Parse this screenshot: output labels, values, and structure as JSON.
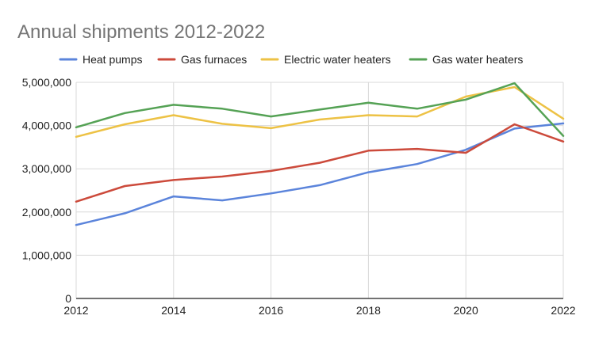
{
  "chart_data": {
    "type": "line",
    "title": "Annual shipments 2012-2022",
    "xlabel": "",
    "ylabel": "",
    "x": [
      2012,
      2013,
      2014,
      2015,
      2016,
      2017,
      2018,
      2019,
      2020,
      2021,
      2022
    ],
    "x_ticks": [
      "2012",
      "2014",
      "2016",
      "2018",
      "2020",
      "2022"
    ],
    "x_tick_values": [
      2012,
      2014,
      2016,
      2018,
      2020,
      2022
    ],
    "y_ticks": [
      "0",
      "1,000,000",
      "2,000,000",
      "3,000,000",
      "4,000,000",
      "5,000,000"
    ],
    "y_tick_values": [
      0,
      1000000,
      2000000,
      3000000,
      4000000,
      5000000
    ],
    "xlim": [
      2012,
      2022
    ],
    "ylim": [
      0,
      5000000
    ],
    "grid": true,
    "legend_position": "top",
    "series": [
      {
        "name": "Heat pumps",
        "color": "#5b84db",
        "values": [
          1700000,
          1970000,
          2360000,
          2270000,
          2430000,
          2620000,
          2920000,
          3110000,
          3440000,
          3930000,
          4050000
        ]
      },
      {
        "name": "Gas furnaces",
        "color": "#cc4a3b",
        "values": [
          2240000,
          2600000,
          2740000,
          2820000,
          2950000,
          3140000,
          3420000,
          3460000,
          3370000,
          4030000,
          3630000
        ]
      },
      {
        "name": "Electric water heaters",
        "color": "#edc245",
        "values": [
          3740000,
          4030000,
          4240000,
          4040000,
          3940000,
          4140000,
          4240000,
          4210000,
          4670000,
          4890000,
          4160000
        ]
      },
      {
        "name": "Gas water heaters",
        "color": "#55a255",
        "values": [
          3960000,
          4290000,
          4480000,
          4390000,
          4210000,
          4370000,
          4530000,
          4390000,
          4600000,
          4980000,
          3760000
        ]
      }
    ]
  },
  "colors": {
    "title": "#757575",
    "text": "#222222",
    "grid": "#d9d9d9",
    "axis": "#444444"
  }
}
